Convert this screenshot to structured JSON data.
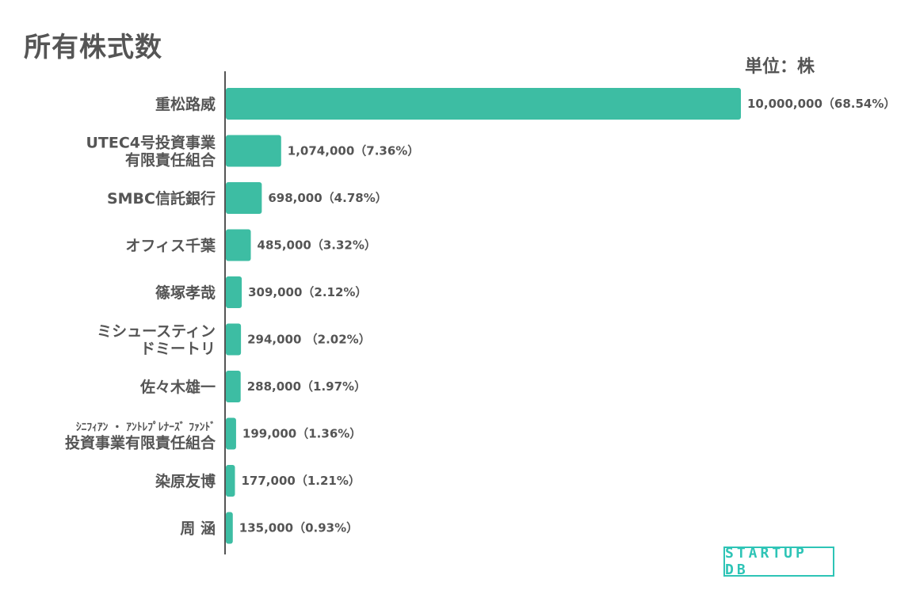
{
  "header": {
    "title": "所有株式数",
    "unit": "単位：株"
  },
  "brand": {
    "logo_text": "STARTUP DB"
  },
  "colors": {
    "bar": "#3dbda3",
    "axis": "#555555",
    "text": "#555555",
    "logo": "#2ec4b6"
  },
  "chart_data": {
    "type": "bar",
    "orientation": "horizontal",
    "title": "所有株式数",
    "unit": "単位：株",
    "xlim": [
      0,
      10000000
    ],
    "grid": false,
    "legend": "none",
    "categories": [
      [
        "重松路威"
      ],
      [
        "UTEC4号投資事業",
        "有限責任組合"
      ],
      [
        "SMBC信託銀行"
      ],
      [
        "オフィス千葉"
      ],
      [
        "篠塚孝哉"
      ],
      [
        "ミシュースティン",
        "ドミートリ"
      ],
      [
        "佐々木雄一"
      ],
      [
        "ｼﾆﾌｨｱﾝ ・ ｱﾝﾄﾚﾌﾟﾚﾅｰｽﾞ ﾌｧﾝﾄﾞ",
        "投資事業有限責任組合"
      ],
      [
        "染原友博"
      ],
      [
        "周 涵"
      ]
    ],
    "values": [
      10000000,
      1074000,
      698000,
      485000,
      309000,
      294000,
      288000,
      199000,
      177000,
      135000
    ],
    "data_labels": [
      "10,000,000（68.54%）",
      "1,074,000（7.36%）",
      "698,000（4.78%）",
      "485,000（3.32%）",
      "309,000（2.12%）",
      "294,000 （2.02%）",
      "288,000（1.97%）",
      "199,000（1.36%）",
      "177,000（1.21%）",
      "135,000（0.93%）"
    ]
  }
}
